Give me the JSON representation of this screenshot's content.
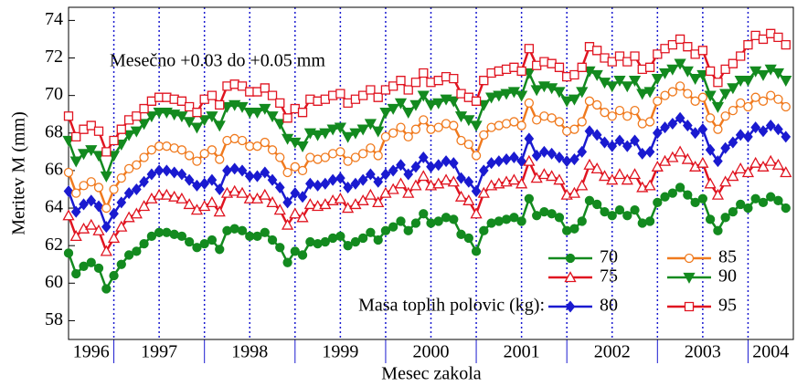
{
  "chart_data": {
    "type": "line",
    "annotation": "Mesečno +0.03 do +0.05 mm",
    "x_label": "Mesec zakola",
    "y_label": "Meritev M (mm)",
    "legend_title": "Masa toplih polovic (kg):",
    "xlim": [
      1996.5,
      2004.5
    ],
    "ylim": [
      57,
      74.7
    ],
    "yticks": [
      58,
      60,
      62,
      64,
      66,
      68,
      70,
      72,
      74
    ],
    "xticks": [
      {
        "value": 1996.75,
        "label": "1996"
      },
      {
        "value": 1997.5,
        "label": "1997"
      },
      {
        "value": 1998.5,
        "label": "1998"
      },
      {
        "value": 1999.5,
        "label": "1999"
      },
      {
        "value": 2000.5,
        "label": "2000"
      },
      {
        "value": 2001.5,
        "label": "2001"
      },
      {
        "value": 2002.5,
        "label": "2002"
      },
      {
        "value": 2003.5,
        "label": "2003"
      },
      {
        "value": 2004.25,
        "label": "2004"
      }
    ],
    "x": [
      1996.5,
      1996.583,
      1996.667,
      1996.75,
      1996.833,
      1996.917,
      1997.0,
      1997.083,
      1997.167,
      1997.25,
      1997.333,
      1997.417,
      1997.5,
      1997.583,
      1997.667,
      1997.75,
      1997.833,
      1997.917,
      1998.0,
      1998.083,
      1998.167,
      1998.25,
      1998.333,
      1998.417,
      1998.5,
      1998.583,
      1998.667,
      1998.75,
      1998.833,
      1998.917,
      1999.0,
      1999.083,
      1999.167,
      1999.25,
      1999.333,
      1999.417,
      1999.5,
      1999.583,
      1999.667,
      1999.75,
      1999.833,
      1999.917,
      2000.0,
      2000.083,
      2000.167,
      2000.25,
      2000.333,
      2000.417,
      2000.5,
      2000.583,
      2000.667,
      2000.75,
      2000.833,
      2000.917,
      2001.0,
      2001.083,
      2001.167,
      2001.25,
      2001.333,
      2001.417,
      2001.5,
      2001.583,
      2001.667,
      2001.75,
      2001.833,
      2001.917,
      2002.0,
      2002.083,
      2002.167,
      2002.25,
      2002.333,
      2002.417,
      2002.5,
      2002.583,
      2002.667,
      2002.75,
      2002.833,
      2002.917,
      2003.0,
      2003.083,
      2003.167,
      2003.25,
      2003.333,
      2003.417,
      2003.5,
      2003.583,
      2003.667,
      2003.75,
      2003.833,
      2003.917,
      2004.0,
      2004.083,
      2004.167,
      2004.25,
      2004.333,
      2004.417
    ],
    "series": [
      {
        "name": "70",
        "color": "#138a1f",
        "marker": "circle",
        "filled": true,
        "values": [
          61.6,
          60.5,
          60.9,
          61.1,
          60.8,
          59.7,
          60.4,
          61.0,
          61.5,
          61.7,
          62.1,
          62.5,
          62.7,
          62.7,
          62.6,
          62.5,
          62.2,
          61.9,
          62.1,
          62.3,
          61.8,
          62.8,
          62.9,
          62.8,
          62.5,
          62.5,
          62.7,
          62.3,
          61.9,
          61.1,
          61.7,
          61.5,
          62.2,
          62.1,
          62.2,
          62.4,
          62.5,
          62.0,
          62.2,
          62.4,
          62.7,
          62.3,
          62.8,
          63.0,
          63.3,
          62.8,
          63.2,
          63.7,
          63.2,
          63.3,
          63.5,
          63.4,
          62.6,
          62.4,
          61.7,
          62.8,
          63.2,
          63.3,
          63.4,
          63.5,
          63.3,
          64.5,
          63.6,
          63.8,
          63.7,
          63.5,
          62.8,
          62.9,
          63.3,
          64.4,
          64.2,
          63.8,
          63.6,
          63.9,
          63.6,
          63.9,
          63.2,
          63.3,
          64.3,
          64.6,
          64.8,
          65.1,
          64.7,
          64.3,
          64.5,
          63.4,
          62.8,
          63.5,
          63.8,
          64.2,
          64.0,
          64.5,
          64.3,
          64.6,
          64.4,
          64.0
        ]
      },
      {
        "name": "75",
        "color": "#e01420",
        "marker": "triangle",
        "filled": false,
        "values": [
          63.6,
          62.5,
          62.9,
          63.1,
          62.8,
          61.7,
          62.4,
          63.0,
          63.5,
          63.7,
          64.1,
          64.5,
          64.7,
          64.7,
          64.6,
          64.5,
          64.2,
          63.9,
          64.1,
          64.3,
          63.8,
          64.8,
          64.9,
          64.8,
          64.5,
          64.5,
          64.7,
          64.3,
          63.9,
          63.1,
          63.7,
          63.5,
          64.2,
          64.1,
          64.2,
          64.4,
          64.5,
          64.0,
          64.2,
          64.4,
          64.7,
          64.3,
          64.8,
          65.0,
          65.3,
          64.8,
          65.2,
          65.7,
          65.2,
          65.3,
          65.5,
          65.4,
          64.6,
          64.4,
          63.7,
          64.8,
          65.2,
          65.3,
          65.4,
          65.5,
          65.3,
          66.5,
          65.6,
          65.8,
          65.7,
          65.5,
          64.7,
          64.8,
          65.2,
          66.3,
          66.1,
          65.7,
          65.5,
          65.8,
          65.5,
          65.8,
          65.1,
          65.2,
          66.2,
          66.5,
          66.7,
          67.0,
          66.6,
          66.2,
          66.4,
          65.3,
          64.7,
          65.4,
          65.7,
          66.1,
          65.9,
          66.4,
          66.2,
          66.5,
          66.3,
          65.9
        ]
      },
      {
        "name": "80",
        "color": "#1a1ad0",
        "marker": "diamond",
        "filled": true,
        "values": [
          64.9,
          63.8,
          64.2,
          64.4,
          64.1,
          63.0,
          63.7,
          64.3,
          64.8,
          65.0,
          65.4,
          65.8,
          66.0,
          66.0,
          65.9,
          65.8,
          65.5,
          65.2,
          65.3,
          65.5,
          65.0,
          66.0,
          66.1,
          66.0,
          65.7,
          65.7,
          65.9,
          65.5,
          65.1,
          64.3,
          64.8,
          64.6,
          65.3,
          65.2,
          65.3,
          65.5,
          65.6,
          65.1,
          65.3,
          65.5,
          65.8,
          65.4,
          65.8,
          66.0,
          66.3,
          65.8,
          66.2,
          66.7,
          66.2,
          66.3,
          66.5,
          66.4,
          65.6,
          65.4,
          64.9,
          66.0,
          66.4,
          66.5,
          66.6,
          66.7,
          66.5,
          67.7,
          66.8,
          67.0,
          66.9,
          66.7,
          66.5,
          66.6,
          67.0,
          68.1,
          67.9,
          67.5,
          67.3,
          67.6,
          67.3,
          67.6,
          66.9,
          67.0,
          68.0,
          68.3,
          68.5,
          68.8,
          68.4,
          68.0,
          68.2,
          67.1,
          66.5,
          67.2,
          67.5,
          67.9,
          67.8,
          68.3,
          68.1,
          68.4,
          68.2,
          67.8
        ]
      },
      {
        "name": "85",
        "color": "#f07a1e",
        "marker": "circle",
        "filled": false,
        "values": [
          65.9,
          64.8,
          65.2,
          65.4,
          65.1,
          64.0,
          65.0,
          65.6,
          66.1,
          66.3,
          66.7,
          67.1,
          67.3,
          67.3,
          67.2,
          67.1,
          66.8,
          66.5,
          66.9,
          67.1,
          66.6,
          67.6,
          67.7,
          67.6,
          67.3,
          67.3,
          67.5,
          67.1,
          66.7,
          65.9,
          66.2,
          66.0,
          66.7,
          66.6,
          66.7,
          66.9,
          67.0,
          66.5,
          66.7,
          66.9,
          67.2,
          66.8,
          67.8,
          68.0,
          68.3,
          67.8,
          68.2,
          68.7,
          68.2,
          68.3,
          68.5,
          68.4,
          67.6,
          67.4,
          66.8,
          67.9,
          68.3,
          68.4,
          68.5,
          68.6,
          68.4,
          69.6,
          68.7,
          68.9,
          68.8,
          68.6,
          68.1,
          68.2,
          68.6,
          69.7,
          69.5,
          69.1,
          68.9,
          69.2,
          68.9,
          69.2,
          68.5,
          68.6,
          69.7,
          70.0,
          70.2,
          70.5,
          70.1,
          69.7,
          69.9,
          68.8,
          68.2,
          68.9,
          69.2,
          69.6,
          69.4,
          69.9,
          69.7,
          70.0,
          69.8,
          69.4
        ]
      },
      {
        "name": "90",
        "color": "#138a1f",
        "marker": "triangle-down",
        "filled": true,
        "values": [
          67.6,
          66.5,
          66.9,
          67.1,
          66.8,
          65.7,
          66.8,
          67.4,
          67.9,
          68.1,
          68.5,
          68.9,
          69.1,
          69.1,
          69.0,
          68.9,
          68.6,
          68.3,
          68.7,
          68.9,
          68.4,
          69.4,
          69.5,
          69.4,
          69.1,
          69.1,
          69.3,
          68.9,
          68.5,
          67.7,
          67.5,
          67.3,
          68.0,
          67.9,
          68.0,
          68.2,
          68.3,
          67.8,
          68.0,
          68.2,
          68.5,
          68.1,
          69.1,
          69.3,
          69.6,
          69.1,
          69.5,
          70.0,
          69.5,
          69.6,
          69.8,
          69.7,
          68.9,
          68.7,
          68.4,
          69.5,
          69.9,
          70.0,
          70.1,
          70.2,
          70.0,
          71.2,
          70.3,
          70.5,
          70.4,
          70.2,
          69.7,
          69.8,
          70.2,
          71.3,
          71.1,
          70.7,
          70.5,
          70.8,
          70.5,
          70.8,
          70.1,
          70.2,
          70.9,
          71.2,
          71.4,
          71.7,
          71.3,
          70.9,
          71.1,
          70.0,
          69.4,
          70.1,
          70.4,
          70.8,
          70.8,
          71.3,
          71.1,
          71.4,
          71.2,
          70.8
        ]
      },
      {
        "name": "95",
        "color": "#e01420",
        "marker": "square",
        "filled": false,
        "values": [
          68.9,
          67.8,
          68.2,
          68.4,
          68.1,
          67.0,
          67.6,
          68.2,
          68.7,
          68.9,
          69.3,
          69.7,
          69.9,
          69.9,
          69.8,
          69.7,
          69.4,
          69.1,
          69.8,
          70.0,
          69.5,
          70.5,
          70.6,
          70.5,
          70.2,
          70.2,
          70.4,
          70.0,
          69.6,
          68.8,
          69.3,
          69.1,
          69.8,
          69.7,
          69.8,
          70.0,
          70.1,
          69.6,
          69.8,
          70.0,
          70.3,
          69.9,
          70.3,
          70.5,
          70.8,
          70.3,
          70.7,
          71.2,
          70.7,
          70.8,
          71.0,
          70.9,
          70.1,
          69.9,
          69.7,
          70.8,
          71.2,
          71.3,
          71.4,
          71.5,
          71.3,
          72.5,
          71.6,
          71.8,
          71.7,
          71.5,
          71.0,
          71.1,
          71.5,
          72.6,
          72.4,
          72.0,
          71.8,
          72.1,
          71.8,
          72.1,
          71.4,
          71.5,
          72.2,
          72.5,
          72.7,
          73.0,
          72.6,
          72.2,
          72.4,
          71.3,
          70.7,
          71.4,
          71.7,
          72.1,
          72.7,
          73.2,
          73.0,
          73.3,
          73.1,
          72.7
        ]
      }
    ]
  }
}
